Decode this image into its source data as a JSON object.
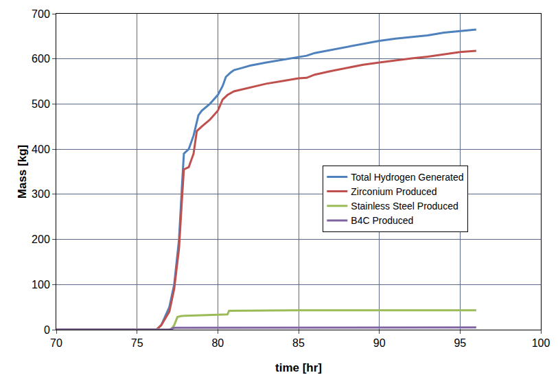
{
  "chart_data": {
    "type": "line",
    "x_label": "time [hr]",
    "y_label": "Mass [kg]",
    "xlim": [
      70,
      100
    ],
    "xticks": [
      70,
      75,
      80,
      85,
      90,
      95,
      100
    ],
    "ylim": [
      0,
      700
    ],
    "yticks": [
      0,
      100,
      200,
      300,
      400,
      500,
      600,
      700
    ],
    "grid": true,
    "legend": "right",
    "series": [
      {
        "name": "Total Hydrogen Generated",
        "color": "#4f81bd",
        "x": [
          70,
          76.2,
          76.5,
          77,
          77.3,
          77.6,
          77.8,
          77.9,
          78.2,
          78.5,
          78.8,
          79,
          79.5,
          80,
          80.3,
          80.5,
          80.8,
          81,
          81.5,
          82,
          83,
          84,
          85,
          85.5,
          86,
          87,
          88,
          89,
          90,
          91,
          92,
          93,
          94,
          95,
          96
        ],
        "values": [
          0,
          0,
          10,
          50,
          100,
          200,
          330,
          390,
          400,
          430,
          475,
          485,
          500,
          520,
          540,
          560,
          570,
          575,
          580,
          585,
          592,
          598,
          603,
          607,
          613,
          620,
          627,
          634,
          640,
          645,
          648,
          652,
          658,
          662,
          665
        ]
      },
      {
        "name": "Zirconium Produced",
        "color": "#c0504d",
        "x": [
          70,
          76.2,
          76.5,
          77,
          77.3,
          77.6,
          77.8,
          77.9,
          78.2,
          78.5,
          78.7,
          79,
          79.5,
          80,
          80.3,
          80.6,
          81,
          82,
          83,
          84,
          85,
          85.5,
          86,
          87,
          88,
          89,
          90,
          91,
          92,
          93,
          94,
          95,
          96
        ],
        "values": [
          0,
          0,
          10,
          40,
          90,
          180,
          300,
          355,
          360,
          390,
          440,
          450,
          465,
          485,
          510,
          520,
          528,
          537,
          545,
          551,
          557,
          558,
          565,
          573,
          580,
          587,
          592,
          597,
          601,
          605,
          610,
          615,
          618
        ]
      },
      {
        "name": "Stainless Steel Produced",
        "color": "#9bbb59",
        "x": [
          70,
          77.1,
          77.3,
          77.5,
          77.7,
          78,
          79,
          80,
          80.6,
          80.7,
          85,
          96
        ],
        "values": [
          0,
          0,
          10,
          28,
          30,
          31,
          32,
          33,
          34,
          42,
          43,
          43
        ]
      },
      {
        "name": "B4C Produced",
        "color": "#8064a2",
        "x": [
          70,
          77,
          77.3,
          96
        ],
        "values": [
          0,
          0,
          4,
          5
        ]
      }
    ]
  }
}
